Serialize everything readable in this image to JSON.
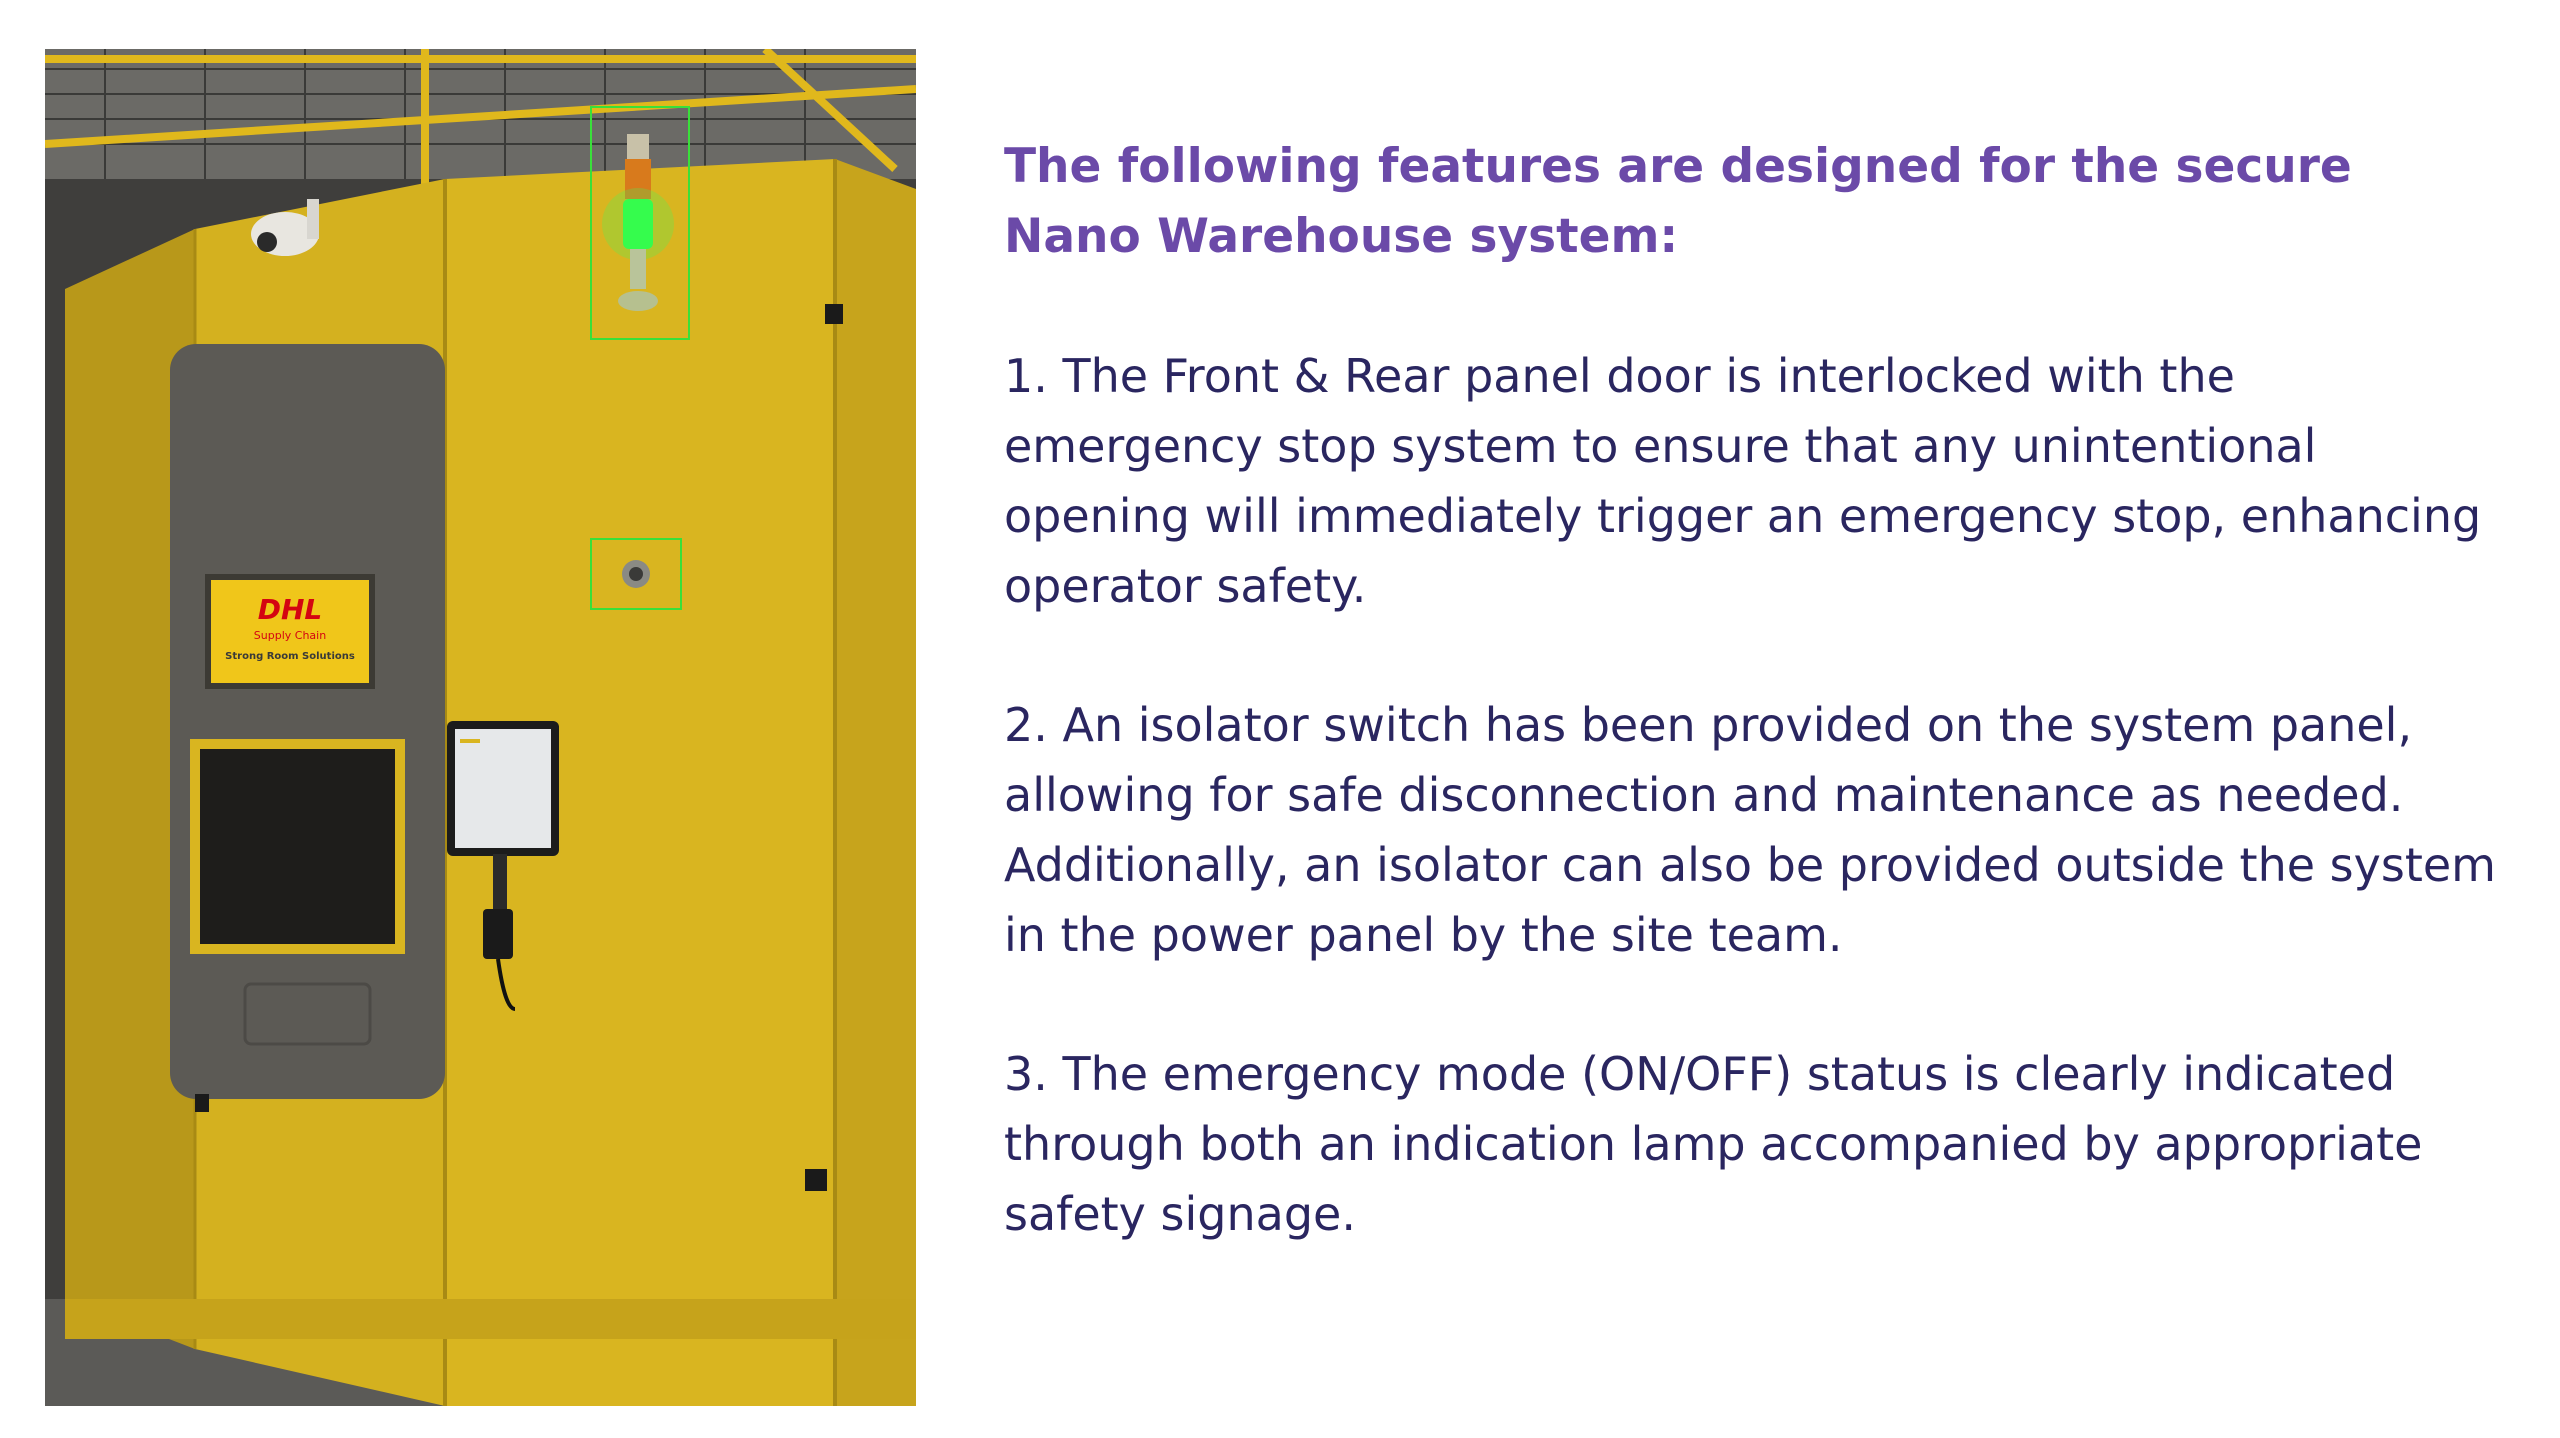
{
  "content": {
    "heading": "The following features are designed for the secure Nano Warehouse system:",
    "points": [
      "1. The Front & Rear panel door is interlocked with the emergency stop system to ensure that any unintentional opening will immediately trigger an emergency stop, enhancing operator safety.",
      "2. An isolator switch has been provided on the system panel, allowing for safe disconnection and maintenance as needed. Additionally, an isolator can also be provided outside the system in the power panel by the site team.",
      "3. The emergency mode (ON/OFF) status is clearly indicated through both an indication lamp accompanied by appropriate safety signage."
    ]
  },
  "photo": {
    "sign_brand": "DHL",
    "sign_line_1": "Supply Chain",
    "sign_line_2": "Strong Room Solutions",
    "colors": {
      "cabinet": "#d9b520",
      "panel_grey": "#5c5a55",
      "highlight_box": "#39e03a",
      "dhl_red": "#d40511",
      "heading_purple": "#6b4aa8",
      "body_navy": "#2a2660"
    }
  }
}
